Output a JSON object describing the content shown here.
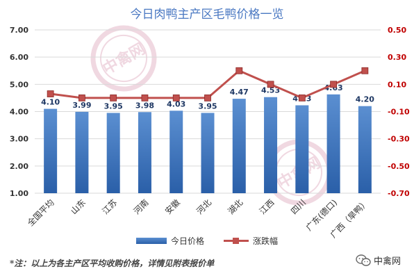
{
  "chart_data": {
    "type": "bar",
    "title": "今日肉鸭主产区毛鸭价格一览",
    "categories": [
      "全国平均",
      "山东",
      "江苏",
      "河南",
      "安徽",
      "河北",
      "湖北",
      "江西",
      "四川",
      "广东(德口)",
      "广西（旱鸭）"
    ],
    "series": [
      {
        "name": "今日价格",
        "type": "bar",
        "axis": "left",
        "color": "#3a6fbf",
        "values": [
          4.1,
          3.99,
          3.95,
          3.98,
          4.03,
          3.95,
          4.47,
          4.53,
          4.23,
          4.63,
          4.2
        ],
        "labels": [
          "4.10",
          "3.99",
          "3.95",
          "3.98",
          "4.03",
          "3.95",
          "4.47",
          "4.53",
          "4.23",
          "4.63",
          "4.20"
        ]
      },
      {
        "name": "涨跌幅",
        "type": "line",
        "axis": "right",
        "color": "#c0504d",
        "values": [
          0.03,
          0.0,
          0.0,
          0.0,
          0.0,
          0.0,
          0.2,
          0.1,
          0.0,
          0.1,
          0.2
        ]
      }
    ],
    "y_left": {
      "min": 1.0,
      "max": 7.0,
      "ticks": [
        "1.00",
        "2.00",
        "3.00",
        "4.00",
        "5.00",
        "6.00",
        "7.00"
      ]
    },
    "y_right": {
      "min": -0.7,
      "max": 0.5,
      "ticks": [
        "-0.70",
        "-0.50",
        "-0.30",
        "-0.10",
        "0.10",
        "0.30",
        "0.50"
      ]
    },
    "grid": true,
    "legend": "bottom"
  },
  "footnote": "*注：以上为各主产区平均收购价格，详情见附表报价单",
  "brand": {
    "name": "中禽网"
  },
  "watermark": "中禽网",
  "colors": {
    "bar": "#3a6fbf",
    "line": "#c0504d",
    "left_axis": "#333333",
    "right_axis": "#c00000"
  }
}
